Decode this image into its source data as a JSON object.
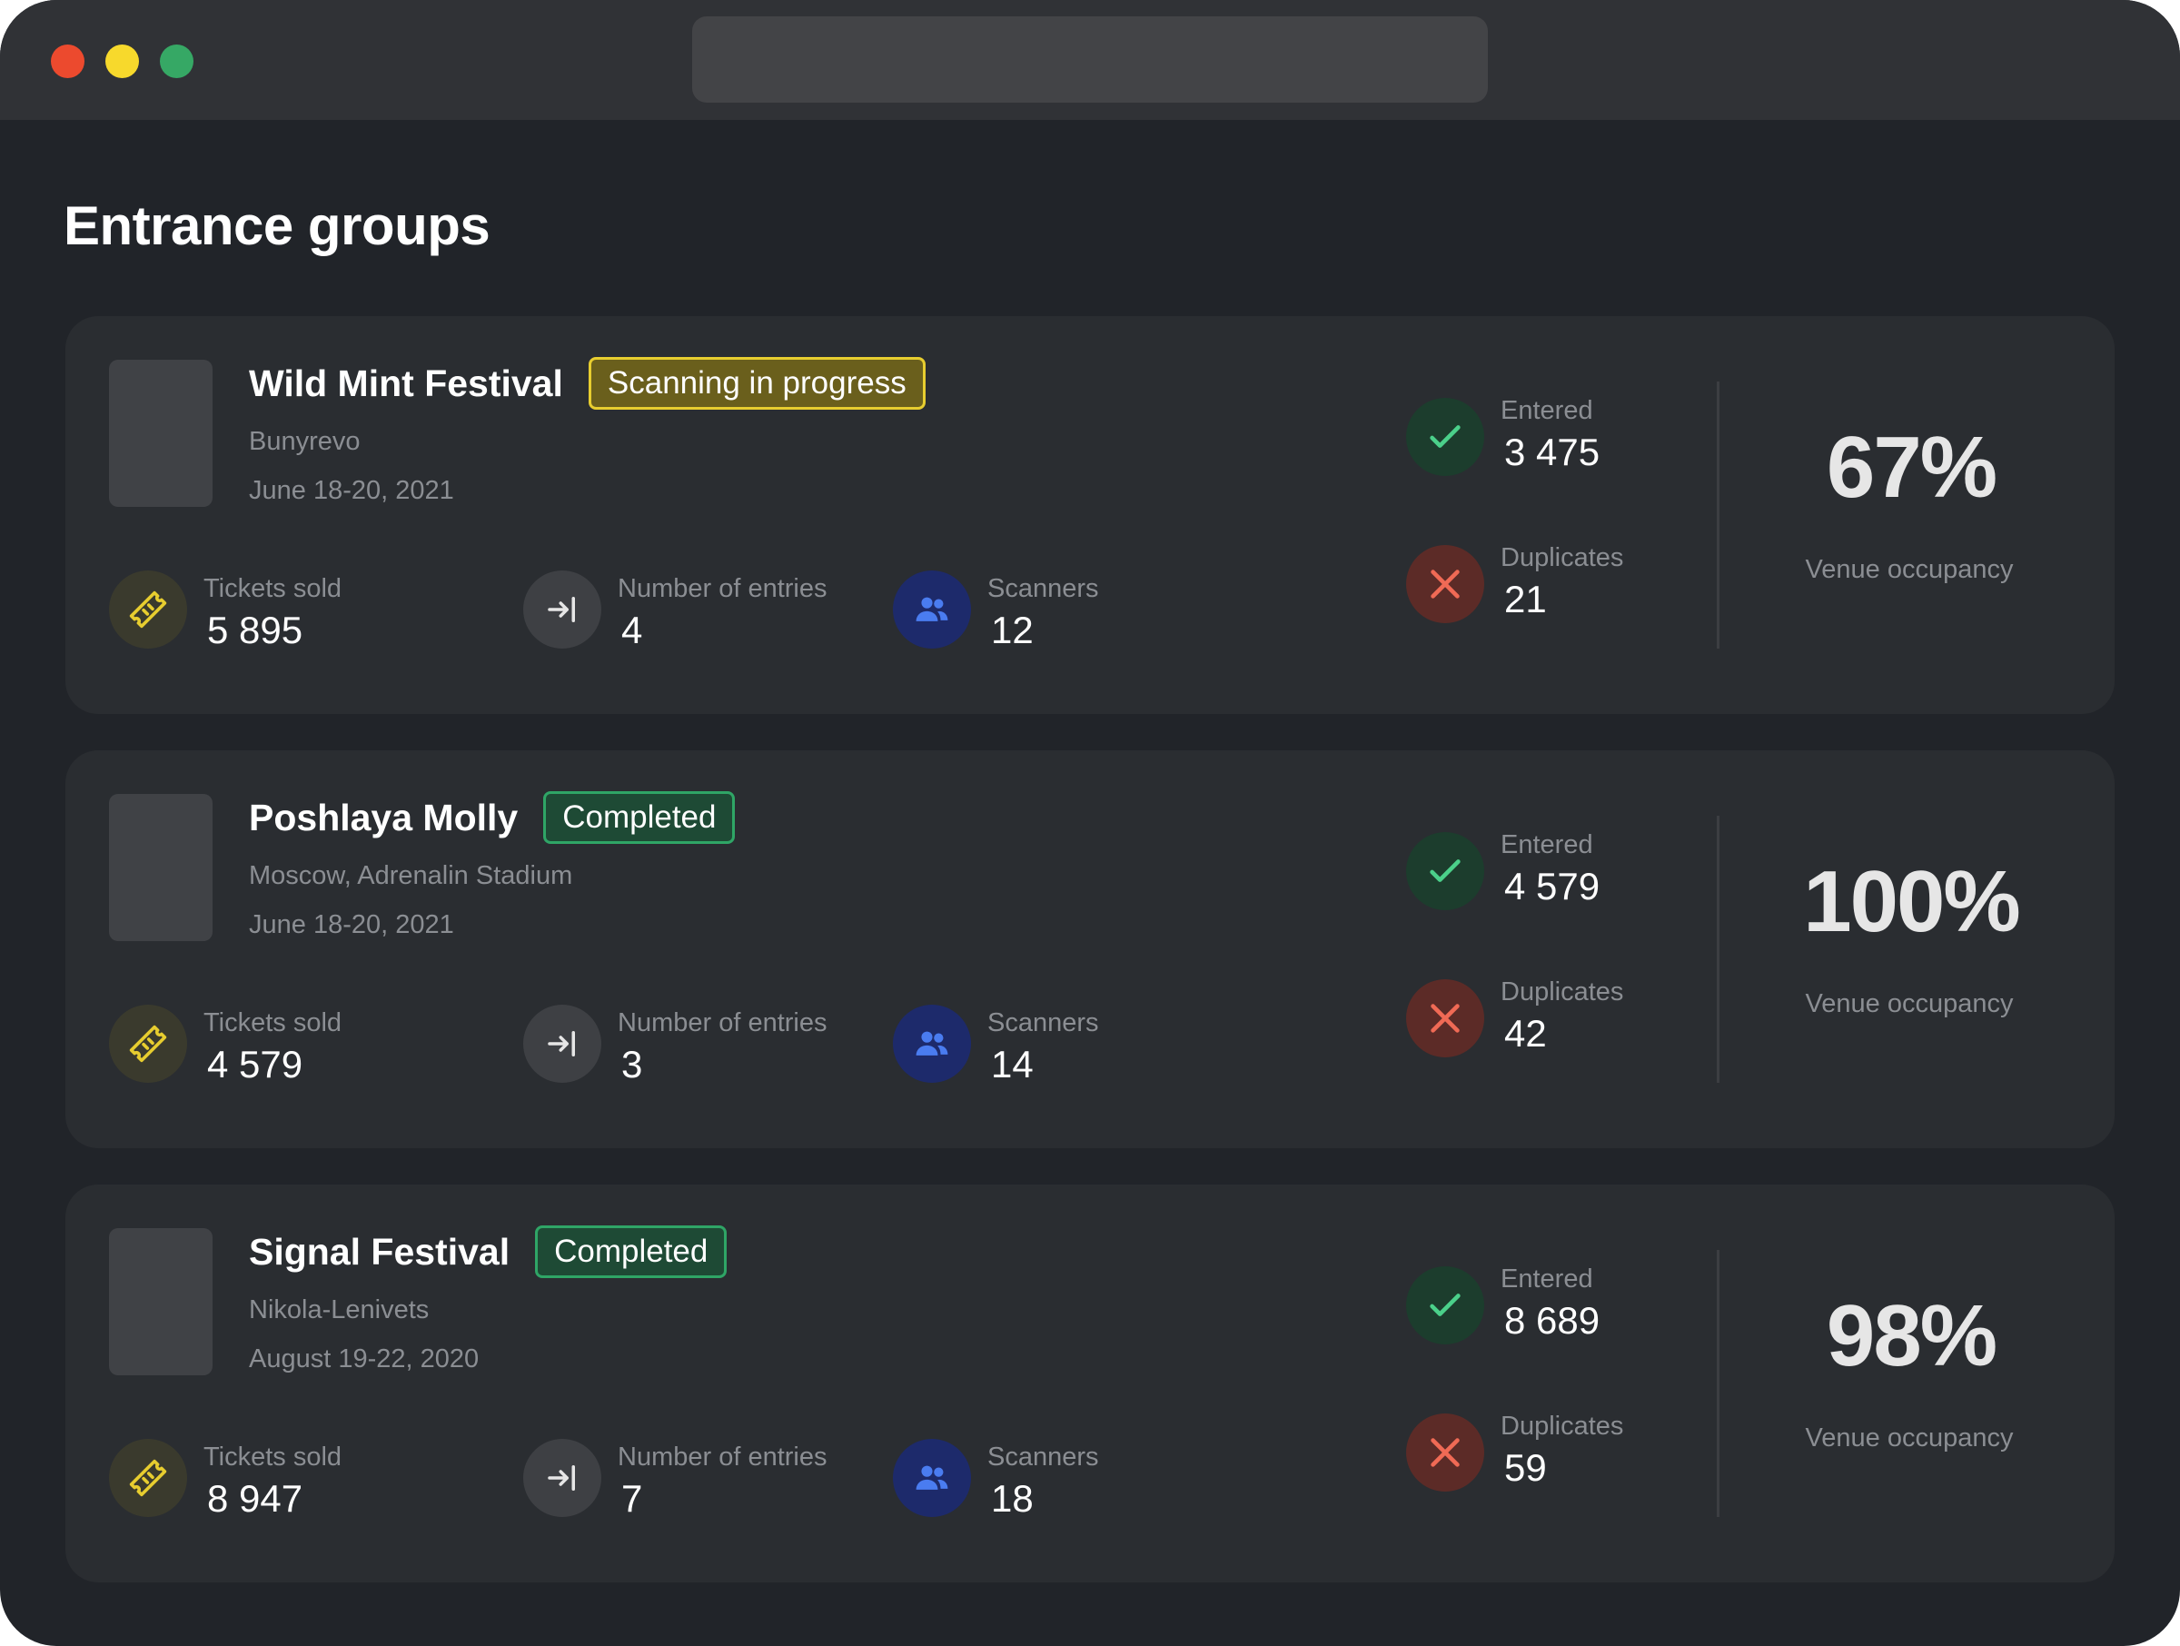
{
  "page": {
    "title": "Entrance groups"
  },
  "labels": {
    "tickets_sold": "Tickets sold",
    "number_of_entries": "Number of entries",
    "scanners": "Scanners",
    "entered": "Entered",
    "duplicates": "Duplicates",
    "venue_occupancy": "Venue occupancy"
  },
  "icons": {
    "ticket": "ticket-icon",
    "entry": "arrow-to-line-icon",
    "scanners": "users-icon",
    "entered": "check-icon",
    "duplicates": "x-icon"
  },
  "colors": {
    "status_in_progress": "#e7cd2f",
    "status_completed": "#2fa566",
    "check": "#4bd08a",
    "cross": "#f06a55",
    "ticket": "#e7cd2f",
    "users": "#4a7cf0"
  },
  "groups": [
    {
      "name": "Wild Mint Festival",
      "status": "Scanning in progress",
      "status_type": "progress",
      "location": "Bunyrevo",
      "dates": "June 18-20, 2021",
      "tickets_sold": "5 895",
      "entries": "4",
      "scanners": "12",
      "entered": "3 475",
      "duplicates": "21",
      "occupancy": "67%"
    },
    {
      "name": "Poshlaya Molly",
      "status": "Completed",
      "status_type": "done",
      "location": "Moscow, Adrenalin Stadium",
      "dates": "June 18-20, 2021",
      "tickets_sold": "4 579",
      "entries": "3",
      "scanners": "14",
      "entered": "4 579",
      "duplicates": "42",
      "occupancy": "100%"
    },
    {
      "name": "Signal Festival",
      "status": "Completed",
      "status_type": "done",
      "location": "Nikola-Lenivets",
      "dates": "August 19-22, 2020",
      "tickets_sold": "8 947",
      "entries": "7",
      "scanners": "18",
      "entered": "8 689",
      "duplicates": "59",
      "occupancy": "98%"
    }
  ]
}
